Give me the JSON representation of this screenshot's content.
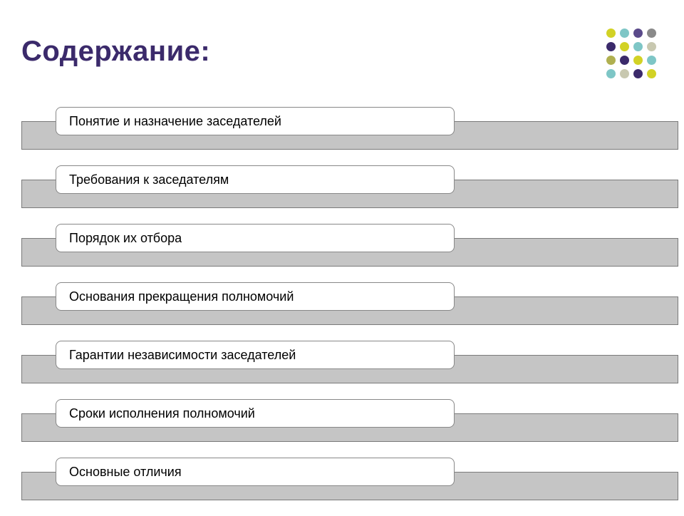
{
  "title": {
    "text": "Содержание:",
    "color": "#3b2a6b",
    "fontsize": 40
  },
  "dots": {
    "rows": 4,
    "cols": 4,
    "size": 13,
    "gap": 6,
    "colors": [
      "#d2d225",
      "#7ec6c6",
      "#5a4a8a",
      "#8a8a8a",
      "#3b2a6b",
      "#d2d225",
      "#7ec6c6",
      "#c8c8b0",
      "#b0b050",
      "#3b2a6b",
      "#d2d225",
      "#7ec6c6",
      "#7ec6c6",
      "#c8c8b0",
      "#3b2a6b",
      "#d2d225"
    ]
  },
  "colors": {
    "bar_fill": "#c5c5c5",
    "bar_border": "#7a7a7a",
    "pill_bg": "#ffffff",
    "pill_border": "#888888",
    "text": "#000000"
  },
  "items": [
    {
      "label": "Понятие и назначение заседателей",
      "pill_width": 560
    },
    {
      "label": "Требования к заседателям",
      "pill_width": 560
    },
    {
      "label": "Порядок их отбора",
      "pill_width": 560
    },
    {
      "label": "Основания прекращения полномочий",
      "pill_width": 560
    },
    {
      "label": "Гарантии независимости  заседателей",
      "pill_width": 560
    },
    {
      "label": "Сроки исполнения полномочий",
      "pill_width": 560
    },
    {
      "label": "Основные отличия",
      "pill_width": 560
    }
  ]
}
